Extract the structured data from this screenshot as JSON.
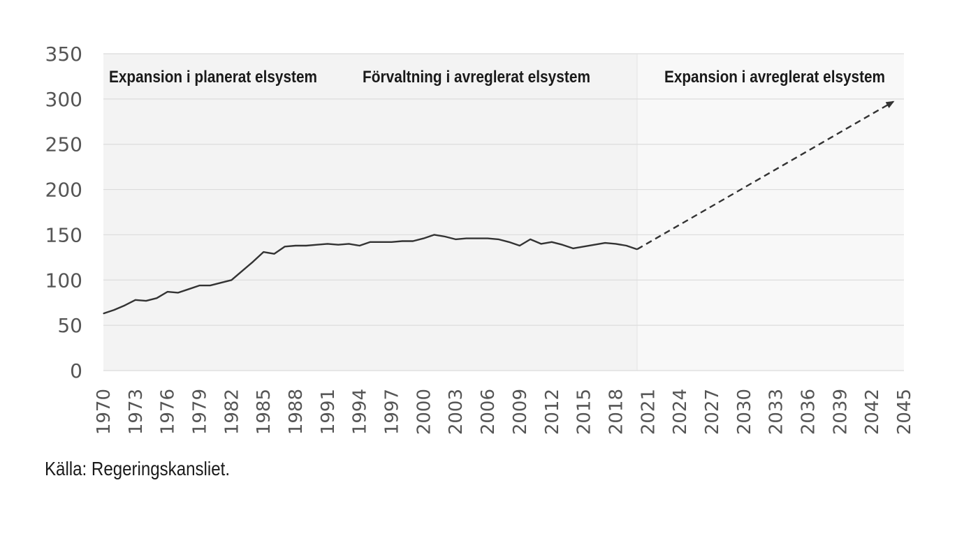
{
  "chart_data": {
    "type": "line",
    "xlim": [
      1970,
      2045
    ],
    "ylim": [
      0,
      350
    ],
    "x_ticks": [
      "1970",
      "1973",
      "1976",
      "1979",
      "1982",
      "1985",
      "1988",
      "1991",
      "1994",
      "1997",
      "2000",
      "2003",
      "2006",
      "2009",
      "2012",
      "2015",
      "2018",
      "2021",
      "2024",
      "2027",
      "2030",
      "2033",
      "2036",
      "2039",
      "2042",
      "2045"
    ],
    "y_ticks": [
      "0",
      "50",
      "100",
      "150",
      "200",
      "250",
      "300",
      "350"
    ],
    "grid": true,
    "regions": [
      {
        "label": "Expansion i planerat elsystem",
        "shaded": true
      },
      {
        "label": "Förvaltning i avreglerat elsystem",
        "shaded": true
      },
      {
        "label": "Expansion i avreglerat elsystem",
        "shaded": false
      }
    ],
    "region_boundary_x": 2020,
    "series": [
      {
        "style": "solid",
        "x": [
          1970,
          1971,
          1972,
          1973,
          1974,
          1975,
          1976,
          1977,
          1978,
          1979,
          1980,
          1981,
          1982,
          1983,
          1984,
          1985,
          1986,
          1987,
          1988,
          1989,
          1990,
          1991,
          1992,
          1993,
          1994,
          1995,
          1996,
          1997,
          1998,
          1999,
          2000,
          2001,
          2002,
          2003,
          2004,
          2005,
          2006,
          2007,
          2008,
          2009,
          2010,
          2011,
          2012,
          2013,
          2014,
          2015,
          2016,
          2017,
          2018,
          2019,
          2020
        ],
        "values": [
          63,
          67,
          72,
          78,
          77,
          80,
          87,
          86,
          90,
          94,
          94,
          97,
          100,
          110,
          120,
          131,
          129,
          137,
          138,
          138,
          139,
          140,
          139,
          140,
          138,
          142,
          142,
          142,
          143,
          143,
          146,
          150,
          148,
          145,
          146,
          146,
          146,
          145,
          142,
          138,
          145,
          140,
          142,
          139,
          135,
          137,
          139,
          141,
          140,
          138,
          134
        ]
      },
      {
        "style": "dashed",
        "arrow": true,
        "x": [
          2020,
          2044
        ],
        "values": [
          134,
          297
        ]
      }
    ]
  },
  "colors": {
    "line": "#333333",
    "shaded_background": "#f3f3f3",
    "grid": "#dcdcdc"
  },
  "source": "Källa: Regeringskansliet."
}
